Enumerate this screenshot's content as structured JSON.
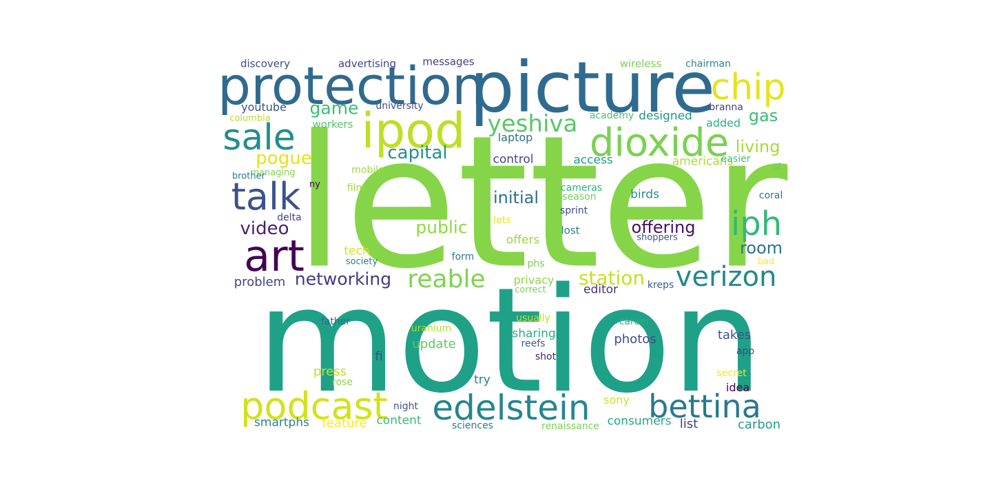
{
  "words": [
    {
      "text": "letter",
      "color": "#86d549"
    },
    {
      "text": "motion",
      "color": "#1fa187"
    },
    {
      "text": "picture",
      "color": "#2f6b8e"
    },
    {
      "text": "protection",
      "color": "#306a8e"
    },
    {
      "text": "ipod",
      "color": "#bddf26"
    },
    {
      "text": "dioxide",
      "color": "#7ad151"
    },
    {
      "text": "chip",
      "color": "#e5e419"
    },
    {
      "text": "sale",
      "color": "#228d8d"
    },
    {
      "text": "talk",
      "color": "#3b528b"
    },
    {
      "text": "art",
      "color": "#440154"
    },
    {
      "text": "iph",
      "color": "#35b779"
    },
    {
      "text": "podcast",
      "color": "#d2e21b"
    },
    {
      "text": "edelstein",
      "color": "#24868e"
    },
    {
      "text": "bettina",
      "color": "#2a788e"
    },
    {
      "text": "verizon",
      "color": "#23888e"
    },
    {
      "text": "yeshiva",
      "color": "#58c765"
    },
    {
      "text": "reable",
      "color": "#7fd34e"
    },
    {
      "text": "networking",
      "color": "#443983"
    },
    {
      "text": "station",
      "color": "#c8e020"
    },
    {
      "text": "capital",
      "color": "#21918c"
    },
    {
      "text": "game",
      "color": "#3dbc74"
    },
    {
      "text": "pogue",
      "color": "#e2e418"
    },
    {
      "text": "living",
      "color": "#a5db36"
    },
    {
      "text": "gas",
      "color": "#3dbc74"
    },
    {
      "text": "video",
      "color": "#481f70"
    },
    {
      "text": "offering",
      "color": "#470e61"
    },
    {
      "text": "room",
      "color": "#2c728e"
    },
    {
      "text": "public",
      "color": "#8fd744"
    },
    {
      "text": "initial",
      "color": "#2c718e"
    },
    {
      "text": "problem",
      "color": "#414487"
    },
    {
      "text": "photos",
      "color": "#3e4c8a"
    },
    {
      "text": "takes",
      "color": "#3b528b"
    },
    {
      "text": "update",
      "color": "#5ec962"
    },
    {
      "text": "sharing",
      "color": "#29af7f"
    },
    {
      "text": "control",
      "color": "#404688"
    },
    {
      "text": "youtube",
      "color": "#3b528b"
    },
    {
      "text": "designed",
      "color": "#1f988b"
    },
    {
      "text": "access",
      "color": "#1fa088"
    },
    {
      "text": "americans",
      "color": "#addc30"
    },
    {
      "text": "added",
      "color": "#2ab07f"
    },
    {
      "text": "press",
      "color": "#c5e021"
    },
    {
      "text": "fi",
      "color": "#3b528b"
    },
    {
      "text": "try",
      "color": "#27808e"
    },
    {
      "text": "idea",
      "color": "#440154"
    },
    {
      "text": "smartphs",
      "color": "#26828e"
    },
    {
      "text": "feature",
      "color": "#fde725"
    },
    {
      "text": "content",
      "color": "#3aba76"
    },
    {
      "text": "consumers",
      "color": "#22a785"
    },
    {
      "text": "list",
      "color": "#433e85"
    },
    {
      "text": "carbon",
      "color": "#1f9a8a"
    },
    {
      "text": "sony",
      "color": "#d0e11c"
    },
    {
      "text": "privacy",
      "color": "#8bd646"
    },
    {
      "text": "editor",
      "color": "#46307e"
    },
    {
      "text": "offers",
      "color": "#9dd93b"
    },
    {
      "text": "birds",
      "color": "#228d8d"
    },
    {
      "text": "laptop",
      "color": "#2c728e"
    },
    {
      "text": "tech",
      "color": "#dae319"
    },
    {
      "text": "discovery",
      "color": "#3e4989"
    },
    {
      "text": "advertising",
      "color": "#414487"
    },
    {
      "text": "messages",
      "color": "#433e85"
    },
    {
      "text": "wireless",
      "color": "#7ad151"
    },
    {
      "text": "chairman",
      "color": "#24878e"
    },
    {
      "text": "university",
      "color": "#3e4989"
    },
    {
      "text": "columbia",
      "color": "#b5de2b"
    },
    {
      "text": "workers",
      "color": "#52c569"
    },
    {
      "text": "academy",
      "color": "#4ac16d"
    },
    {
      "text": "branna",
      "color": "#433e85"
    },
    {
      "text": "managing",
      "color": "#84d44b"
    },
    {
      "text": "brother",
      "color": "#2a788e"
    },
    {
      "text": "mobile",
      "color": "#9bd93c"
    },
    {
      "text": "ny",
      "color": "#440154"
    },
    {
      "text": "film",
      "color": "#a0da39"
    },
    {
      "text": "easier",
      "color": "#42be71"
    },
    {
      "text": "st",
      "color": "#6ccd5a"
    },
    {
      "text": "cameras",
      "color": "#2db27d"
    },
    {
      "text": "season",
      "color": "#70cf57"
    },
    {
      "text": "sprint",
      "color": "#3f4788"
    },
    {
      "text": "coral",
      "color": "#2c728e"
    },
    {
      "text": "delta",
      "color": "#423f85"
    },
    {
      "text": "lets",
      "color": "#e5e419"
    },
    {
      "text": "lost",
      "color": "#287c8e"
    },
    {
      "text": "shoppers",
      "color": "#3b528b"
    },
    {
      "text": "society",
      "color": "#287d8e"
    },
    {
      "text": "form",
      "color": "#2a788e"
    },
    {
      "text": "phs",
      "color": "#77d153"
    },
    {
      "text": "bad",
      "color": "#fde725"
    },
    {
      "text": "correct",
      "color": "#7ad151"
    },
    {
      "text": "kreps",
      "color": "#355f8d"
    },
    {
      "text": "father",
      "color": "#33638d"
    },
    {
      "text": "uranium",
      "color": "#a8db34"
    },
    {
      "text": "usually",
      "color": "#c2df23"
    },
    {
      "text": "career",
      "color": "#2ab07f"
    },
    {
      "text": "reefs",
      "color": "#37598c"
    },
    {
      "text": "shot",
      "color": "#482173"
    },
    {
      "text": "app",
      "color": "#3f4889"
    },
    {
      "text": "secret",
      "color": "#f1e51d"
    },
    {
      "text": "rose",
      "color": "#8bd646"
    },
    {
      "text": "night",
      "color": "#3b528b"
    },
    {
      "text": "sciences",
      "color": "#2a788e"
    },
    {
      "text": "renaissance",
      "color": "#7ad151"
    }
  ]
}
